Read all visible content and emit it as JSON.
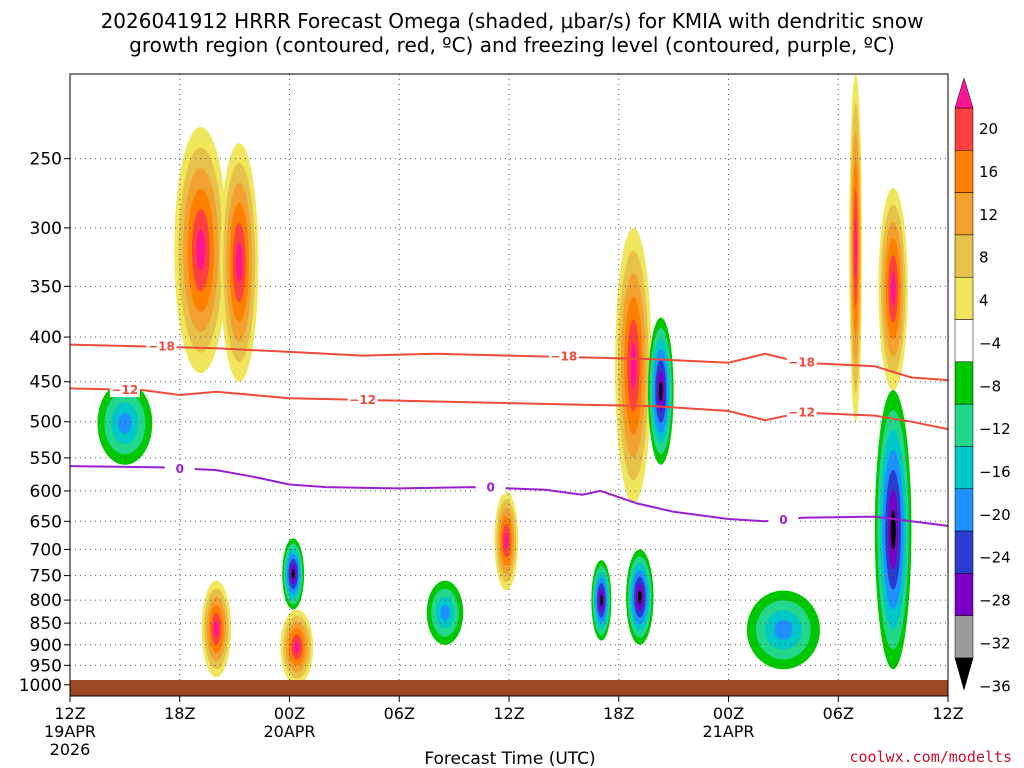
{
  "title_line1": "2026041912 HRRR Forecast Omega (shaded, μbar/s) for KMIA with dendritic snow",
  "title_line2": "growth region (contoured, red, ºC) and freezing level (contoured, purple, ºC)",
  "credit": "coolwx.com/modelts",
  "chart_data": {
    "type": "heatmap",
    "xlabel": "Forecast Time (UTC)",
    "ylabel": "",
    "x_ticks": [
      {
        "label": "12Z",
        "sub": "19APR",
        "sub2": "2026",
        "hour": 0
      },
      {
        "label": "18Z",
        "hour": 6
      },
      {
        "label": "00Z",
        "sub": "20APR",
        "hour": 12
      },
      {
        "label": "06Z",
        "hour": 18
      },
      {
        "label": "12Z",
        "hour": 24
      },
      {
        "label": "18Z",
        "hour": 30
      },
      {
        "label": "00Z",
        "sub": "21APR",
        "hour": 36
      },
      {
        "label": "06Z",
        "hour": 42
      },
      {
        "label": "12Z",
        "hour": 48
      }
    ],
    "xlim": [
      0,
      48
    ],
    "y_ticks": [
      250,
      300,
      350,
      400,
      450,
      500,
      550,
      600,
      650,
      700,
      750,
      800,
      850,
      900,
      950,
      1000
    ],
    "ylim": [
      1030,
      200
    ],
    "colorbar": {
      "labels": [
        "20",
        "16",
        "12",
        "8",
        "4",
        "−4",
        "−8",
        "−12",
        "−16",
        "−20",
        "−24",
        "−28",
        "−32",
        "−36"
      ],
      "colors": [
        "#ff1493",
        "#ff4040",
        "#ff7f00",
        "#f2a02e",
        "#e7c24b",
        "#f0e65c",
        "#ffffff",
        "#00c800",
        "#22d68c",
        "#00c8c8",
        "#1e90ff",
        "#2a3bd0",
        "#7a00c8",
        "#9b9b9b",
        "#000000"
      ]
    },
    "contours": [
      {
        "label": "−18",
        "color": "#ef4a3c",
        "points": [
          [
            0,
            408
          ],
          [
            4,
            410
          ],
          [
            8,
            412
          ],
          [
            12,
            416
          ],
          [
            16,
            420
          ],
          [
            20,
            418
          ],
          [
            24,
            420
          ],
          [
            28,
            422
          ],
          [
            32,
            424
          ],
          [
            36,
            428
          ],
          [
            38,
            418
          ],
          [
            40,
            428
          ],
          [
            44,
            432
          ],
          [
            46,
            445
          ],
          [
            48,
            448
          ]
        ],
        "label_at": [
          [
            5,
            410
          ],
          [
            27,
            421
          ],
          [
            40,
            428
          ]
        ]
      },
      {
        "label": "−12",
        "color": "#ef4a3c",
        "points": [
          [
            0,
            458
          ],
          [
            4,
            460
          ],
          [
            6,
            466
          ],
          [
            8,
            462
          ],
          [
            12,
            470
          ],
          [
            16,
            472
          ],
          [
            20,
            474
          ],
          [
            24,
            476
          ],
          [
            28,
            478
          ],
          [
            32,
            480
          ],
          [
            36,
            486
          ],
          [
            38,
            498
          ],
          [
            40,
            488
          ],
          [
            44,
            492
          ],
          [
            46,
            500
          ],
          [
            48,
            510
          ]
        ],
        "label_at": [
          [
            3,
            460
          ],
          [
            16,
            472
          ],
          [
            40,
            488
          ]
        ]
      },
      {
        "label": "0",
        "color": "#9a1fd0",
        "points": [
          [
            0,
            562
          ],
          [
            5,
            564
          ],
          [
            8,
            568
          ],
          [
            10,
            578
          ],
          [
            12,
            590
          ],
          [
            14,
            594
          ],
          [
            18,
            596
          ],
          [
            22,
            594
          ],
          [
            26,
            598
          ],
          [
            28,
            606
          ],
          [
            29,
            600
          ],
          [
            31,
            620
          ],
          [
            33,
            634
          ],
          [
            36,
            646
          ],
          [
            38,
            650
          ],
          [
            40,
            644
          ],
          [
            44,
            642
          ],
          [
            46,
            650
          ],
          [
            48,
            658
          ]
        ],
        "label_at": [
          [
            6,
            566
          ],
          [
            23,
            595
          ],
          [
            39,
            648
          ]
        ]
      }
    ],
    "regions": [
      {
        "x": [
          5.7,
          8.6
        ],
        "y": [
          230,
          440
        ],
        "v": "pos"
      },
      {
        "x": [
          8.2,
          10.3
        ],
        "y": [
          240,
          450
        ],
        "v": "pos"
      },
      {
        "x": [
          7.2,
          8.8
        ],
        "y": [
          760,
          980
        ],
        "v": "pos"
      },
      {
        "x": [
          11.5,
          13.3
        ],
        "y": [
          820,
          1000
        ],
        "v": "pos"
      },
      {
        "x": [
          29.8,
          31.8
        ],
        "y": [
          300,
          620
        ],
        "v": "pos"
      },
      {
        "x": [
          42.6,
          43.3
        ],
        "y": [
          200,
          500
        ],
        "v": "pos"
      },
      {
        "x": [
          44.2,
          45.8
        ],
        "y": [
          270,
          460
        ],
        "v": "pos"
      },
      {
        "x": [
          23.2,
          24.5
        ],
        "y": [
          600,
          780
        ],
        "v": "pos"
      },
      {
        "x": [
          31.6,
          33.0
        ],
        "y": [
          380,
          560
        ],
        "v": "neg"
      },
      {
        "x": [
          11.6,
          12.8
        ],
        "y": [
          680,
          820
        ],
        "v": "neg"
      },
      {
        "x": [
          28.5,
          29.6
        ],
        "y": [
          720,
          890
        ],
        "v": "neg"
      },
      {
        "x": [
          30.4,
          31.9
        ],
        "y": [
          700,
          900
        ],
        "v": "neg"
      },
      {
        "x": [
          44.0,
          46.0
        ],
        "y": [
          460,
          960
        ],
        "v": "neg"
      },
      {
        "x": [
          1.5,
          4.5
        ],
        "y": [
          450,
          560
        ],
        "v": "weak"
      },
      {
        "x": [
          19.5,
          21.5
        ],
        "y": [
          760,
          900
        ],
        "v": "weak"
      },
      {
        "x": [
          37.0,
          41.0
        ],
        "y": [
          780,
          960
        ],
        "v": "weak"
      }
    ]
  }
}
